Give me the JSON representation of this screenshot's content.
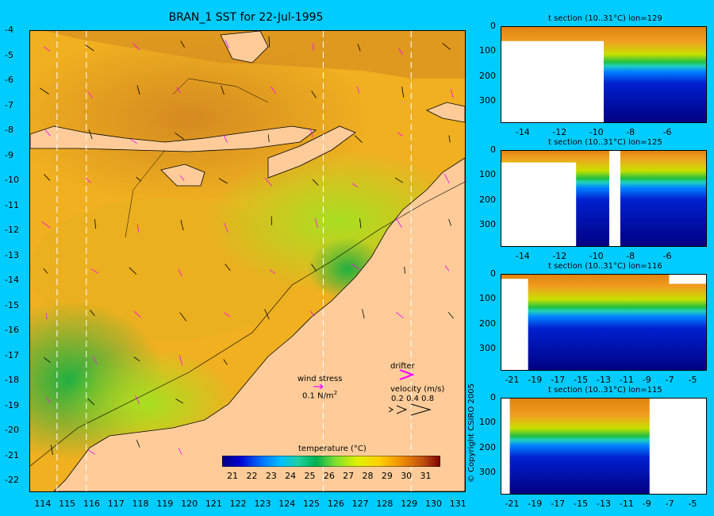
{
  "title": "BRAN_1 SST for 22-Jul-1995",
  "copyright": "© Copyright CSIRO 2005",
  "colors": {
    "background": "#00ccff",
    "land": "#ffcc99",
    "colormap": [
      "#00007f",
      "#0000c8",
      "#0040ff",
      "#0090ff",
      "#00d0ff",
      "#30e0a0",
      "#00c060",
      "#60e040",
      "#c8f000",
      "#ffe000",
      "#ffb000",
      "#f08000",
      "#c05000",
      "#800000"
    ]
  },
  "chart_data": [
    {
      "type": "heatmap",
      "title": "BRAN_1 SST for 22-Jul-1995",
      "x_ticks": [
        114,
        115,
        116,
        117,
        118,
        119,
        120,
        121,
        122,
        123,
        124,
        125,
        126,
        127,
        128,
        129,
        130,
        131
      ],
      "y_ticks": [
        -4,
        -5,
        -6,
        -7,
        -8,
        -9,
        -10,
        -11,
        -12,
        -13,
        -14,
        -15,
        -16,
        -17,
        -18,
        -19,
        -20,
        -21,
        -22
      ],
      "xlim": [
        113.5,
        131.3
      ],
      "ylim": [
        -22.4,
        -4
      ],
      "section_longitudes": [
        114.6,
        115.8,
        125.5,
        129.1
      ],
      "colorbar": {
        "label": "temperature (°C)",
        "ticks": [
          21,
          22,
          23,
          24,
          25,
          26,
          27,
          28,
          29,
          30,
          31
        ],
        "range": [
          20.5,
          31.8
        ]
      },
      "legend": {
        "wind_stress_label": "wind stress",
        "wind_stress_scale": "0.1 N/m",
        "wind_stress_exp": "2",
        "drifter_label": "drifter",
        "velocity_label": "velocity (m/s)",
        "velocity_scale": "0.2 0.4 0.8"
      }
    },
    {
      "type": "heatmap",
      "title": "t section (10..31°C) lon=129",
      "x_ticks": [
        -14,
        -12,
        -10,
        -8,
        -6
      ],
      "y_ticks": [
        0,
        100,
        200,
        300
      ],
      "xlim": [
        -15.2,
        -4
      ],
      "ylim": [
        0,
        390
      ],
      "thermocline_depth": 160
    },
    {
      "type": "heatmap",
      "title": "t section (10..31°C) lon=125",
      "x_ticks": [
        -14,
        -12,
        -10,
        -8,
        -6
      ],
      "y_ticks": [
        0,
        100,
        200,
        300
      ],
      "xlim": [
        -15.2,
        -4
      ],
      "ylim": [
        0,
        390
      ],
      "thermocline_depth": 130
    },
    {
      "type": "heatmap",
      "title": "t section (10..31°C) lon=116",
      "x_ticks": [
        -21,
        -19,
        -17,
        -15,
        -13,
        -11,
        -9,
        -7,
        -5
      ],
      "y_ticks": [
        0,
        100,
        200,
        300
      ],
      "xlim": [
        -22,
        -4
      ],
      "ylim": [
        0,
        390
      ],
      "thermocline_depth": 150
    },
    {
      "type": "heatmap",
      "title": "t section (10..31°C) lon=115",
      "x_ticks": [
        -21,
        -19,
        -17,
        -15,
        -13,
        -11,
        -9,
        -7,
        -5
      ],
      "y_ticks": [
        0,
        100,
        200,
        300
      ],
      "xlim": [
        -22,
        -4
      ],
      "ylim": [
        0,
        390
      ],
      "thermocline_depth": 170
    }
  ]
}
